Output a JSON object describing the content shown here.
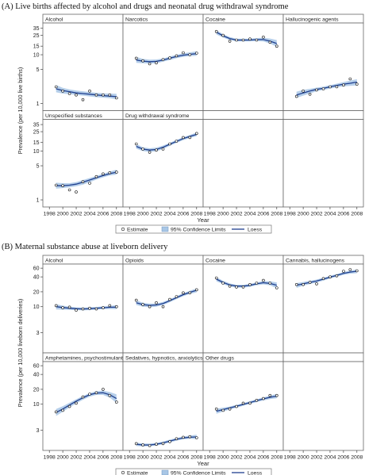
{
  "chart_data": [
    {
      "id": "A",
      "type": "scatter",
      "title": "(A) Live births affected by alcohol and drugs and neonatal drug withdrawal syndrome",
      "ylabel": "Prevalence (per 10,000 live births)",
      "xlabel": "Year",
      "yscale": "log",
      "ylim": [
        0.8,
        40
      ],
      "yticks": [
        1,
        5,
        10,
        15,
        25,
        35
      ],
      "xlim": [
        1997.5,
        2008.5
      ],
      "xticks": [
        1998,
        2000,
        2002,
        2004,
        2006,
        2008
      ],
      "legend": {
        "position": "bottom",
        "items": [
          "Estimate",
          "95% Confidence Limits",
          "Loess"
        ]
      },
      "panels": [
        {
          "title": "Alcohol",
          "x": [
            1999,
            2000,
            2001,
            2002,
            2003,
            2004,
            2005,
            2006,
            2007,
            2008
          ],
          "estimate": [
            2.2,
            1.8,
            1.6,
            1.5,
            1.2,
            1.8,
            1.5,
            1.5,
            1.5,
            1.3
          ],
          "loess": [
            2.0,
            1.85,
            1.75,
            1.65,
            1.6,
            1.55,
            1.5,
            1.45,
            1.42,
            1.38
          ],
          "ci_low": [
            1.7,
            1.6,
            1.55,
            1.5,
            1.45,
            1.4,
            1.35,
            1.32,
            1.28,
            1.22
          ],
          "ci_high": [
            2.4,
            2.1,
            1.95,
            1.85,
            1.78,
            1.72,
            1.66,
            1.62,
            1.6,
            1.58
          ]
        },
        {
          "title": "Narcotics",
          "x": [
            1999,
            2000,
            2001,
            2002,
            2003,
            2004,
            2005,
            2006,
            2007,
            2008
          ],
          "estimate": [
            8.5,
            7.5,
            6.5,
            6.8,
            8.0,
            8.6,
            9.5,
            11.0,
            10.0,
            10.8
          ],
          "loess": [
            7.8,
            7.4,
            7.2,
            7.3,
            7.8,
            8.5,
            9.2,
            9.8,
            10.2,
            10.5
          ],
          "ci_low": [
            6.8,
            6.7,
            6.6,
            6.7,
            7.2,
            7.8,
            8.5,
            9.0,
            9.4,
            9.5
          ],
          "ci_high": [
            9.0,
            8.2,
            7.9,
            8.0,
            8.4,
            9.2,
            10.0,
            10.7,
            11.2,
            11.7
          ]
        },
        {
          "title": "Cocaine",
          "x": [
            1999,
            2000,
            2001,
            2002,
            2003,
            2004,
            2005,
            2006,
            2007,
            2008
          ],
          "estimate": [
            30,
            25,
            19,
            20,
            20,
            21,
            20,
            23,
            18,
            15
          ],
          "loess": [
            29,
            24.5,
            21.5,
            20,
            20,
            20,
            20.5,
            20.5,
            19,
            17
          ],
          "ci_low": [
            26,
            22.5,
            20,
            18.8,
            18.8,
            18.8,
            19,
            18.8,
            17,
            14.5
          ],
          "ci_high": [
            32,
            26.5,
            23,
            21.3,
            21.3,
            21.3,
            22,
            22.3,
            21.5,
            20
          ]
        },
        {
          "title": "Hallucinogenic agents",
          "x": [
            1999,
            2000,
            2001,
            2002,
            2003,
            2004,
            2005,
            2006,
            2007,
            2008
          ],
          "estimate": [
            1.4,
            1.8,
            1.55,
            1.9,
            2.0,
            2.2,
            2.2,
            2.4,
            3.2,
            2.5
          ],
          "loess": [
            1.5,
            1.65,
            1.8,
            1.95,
            2.05,
            2.2,
            2.35,
            2.5,
            2.6,
            2.75
          ],
          "ci_low": [
            1.3,
            1.45,
            1.62,
            1.78,
            1.9,
            2.02,
            2.15,
            2.25,
            2.3,
            2.35
          ],
          "ci_high": [
            1.75,
            1.9,
            2.0,
            2.12,
            2.22,
            2.38,
            2.55,
            2.75,
            2.95,
            3.15
          ]
        },
        {
          "title": "Unspecified substances",
          "x": [
            1999,
            2000,
            2001,
            2002,
            2003,
            2004,
            2005,
            2006,
            2007,
            2008
          ],
          "estimate": [
            2.0,
            1.95,
            1.6,
            1.45,
            2.35,
            2.2,
            3.0,
            3.4,
            3.6,
            3.7
          ],
          "loess": [
            1.95,
            1.95,
            2.0,
            2.1,
            2.3,
            2.55,
            2.85,
            3.15,
            3.45,
            3.7
          ],
          "ci_low": [
            1.7,
            1.75,
            1.8,
            1.9,
            2.05,
            2.3,
            2.6,
            2.9,
            3.15,
            3.3
          ],
          "ci_high": [
            2.25,
            2.2,
            2.2,
            2.32,
            2.55,
            2.8,
            3.1,
            3.42,
            3.8,
            4.15
          ]
        },
        {
          "title": "Drug withdrawal syndrome",
          "x": [
            1999,
            2000,
            2001,
            2002,
            2003,
            2004,
            2005,
            2006,
            2007,
            2008
          ],
          "estimate": [
            14,
            11,
            9.5,
            10.5,
            11,
            14,
            16,
            19,
            19,
            23
          ],
          "loess": [
            12.5,
            11,
            10.5,
            10.8,
            12,
            13.8,
            15.8,
            18,
            20,
            22
          ],
          "ci_low": [
            11.2,
            10,
            9.6,
            9.9,
            11,
            12.8,
            14.7,
            16.8,
            18.6,
            20.2
          ],
          "ci_high": [
            14,
            12,
            11.4,
            11.8,
            13,
            14.8,
            17,
            19.3,
            21.5,
            24
          ]
        }
      ]
    },
    {
      "id": "B",
      "type": "scatter",
      "title": "(B) Maternal substance abuse at liveborn delivery",
      "ylabel": "Prevalence (per 10,000 liveborn deliveries)",
      "xlabel": "Year",
      "yscale": "log",
      "ylim": [
        1.3,
        65
      ],
      "yticks": [
        3,
        10,
        20,
        40,
        60
      ],
      "xlim": [
        1997.5,
        2008.5
      ],
      "xticks": [
        1998,
        2000,
        2002,
        2004,
        2006,
        2008
      ],
      "legend": {
        "position": "bottom",
        "items": [
          "Estimate",
          "95% Confidence Limits",
          "Loess"
        ]
      },
      "panels": [
        {
          "title": "Alcohol",
          "x": [
            1999,
            2000,
            2001,
            2002,
            2003,
            2004,
            2005,
            2006,
            2007,
            2008
          ],
          "estimate": [
            10.5,
            9.5,
            9.8,
            8.5,
            9.0,
            9.3,
            9.0,
            9.5,
            10.5,
            10.0
          ],
          "loess": [
            10,
            9.6,
            9.3,
            9.1,
            9.0,
            9.1,
            9.3,
            9.5,
            9.7,
            9.8
          ],
          "ci_low": [
            8.8,
            8.7,
            8.6,
            8.5,
            8.4,
            8.5,
            8.7,
            8.9,
            9.0,
            8.9
          ],
          "ci_high": [
            11.2,
            10.5,
            10.0,
            9.7,
            9.6,
            9.7,
            9.9,
            10.1,
            10.4,
            10.7
          ]
        },
        {
          "title": "Opioids",
          "x": [
            1999,
            2000,
            2001,
            2002,
            2003,
            2004,
            2005,
            2006,
            2007,
            2008
          ],
          "estimate": [
            13.5,
            11,
            10,
            12,
            10,
            14,
            16,
            19,
            19,
            22
          ],
          "loess": [
            12,
            11,
            10.6,
            10.8,
            11.6,
            13.2,
            15.2,
            17.5,
            19.5,
            21.5
          ],
          "ci_low": [
            10.8,
            10,
            9.7,
            10,
            10.8,
            12.3,
            14.2,
            16.3,
            18,
            19.5
          ],
          "ci_high": [
            13.4,
            12,
            11.5,
            11.6,
            12.5,
            14.1,
            16.3,
            18.8,
            21,
            23.5
          ]
        },
        {
          "title": "Cocaine",
          "x": [
            1999,
            2000,
            2001,
            2002,
            2003,
            2004,
            2005,
            2006,
            2007,
            2008
          ],
          "estimate": [
            38,
            30,
            26,
            25,
            25,
            28,
            30,
            34,
            30,
            24
          ],
          "loess": [
            36,
            31,
            27.5,
            26,
            26,
            27,
            29,
            30.5,
            29.5,
            27
          ],
          "ci_low": [
            32.5,
            28.5,
            25.5,
            24.3,
            24.3,
            25.2,
            27,
            28.2,
            27,
            23.5
          ],
          "ci_high": [
            39.5,
            33.5,
            29.5,
            27.7,
            27.7,
            28.8,
            31,
            32.8,
            32.5,
            31
          ]
        },
        {
          "title": "Cannabis, hallucinogens",
          "x": [
            1999,
            2000,
            2001,
            2002,
            2003,
            2004,
            2005,
            2006,
            2007,
            2008
          ],
          "estimate": [
            28,
            28,
            31,
            29,
            37,
            40,
            42,
            52,
            56,
            53
          ],
          "loess": [
            27,
            29,
            31,
            33,
            36,
            39.5,
            43,
            47,
            50,
            52
          ],
          "ci_low": [
            24,
            26.5,
            28.6,
            30.7,
            33.6,
            37,
            40.3,
            44,
            46.5,
            47.5
          ],
          "ci_high": [
            30,
            31.5,
            33.4,
            35.3,
            38.4,
            42,
            45.7,
            50,
            53.5,
            56.5
          ]
        },
        {
          "title": "Amphetamines, psychostimulants",
          "x": [
            1999,
            2000,
            2001,
            2002,
            2003,
            2004,
            2005,
            2006,
            2007,
            2008
          ],
          "estimate": [
            7.0,
            7.5,
            9.0,
            10.5,
            14,
            16,
            17,
            20,
            15,
            11
          ],
          "loess": [
            6.8,
            8.0,
            9.6,
            11.5,
            13.5,
            15.5,
            16.8,
            17,
            15.5,
            13
          ],
          "ci_low": [
            5.8,
            7.0,
            8.6,
            10.4,
            12.3,
            14.2,
            15.4,
            15.4,
            13.6,
            10.6
          ],
          "ci_high": [
            8.0,
            9.1,
            10.7,
            12.6,
            14.7,
            16.8,
            18.3,
            18.8,
            17.6,
            15.8
          ]
        },
        {
          "title": "Sedatives, hypnotics, anxiolytics",
          "x": [
            1999,
            2000,
            2001,
            2002,
            2003,
            2004,
            2005,
            2006,
            2007,
            2008
          ],
          "estimate": [
            1.6,
            1.5,
            1.45,
            1.55,
            1.6,
            1.75,
            2.0,
            2.15,
            2.2,
            2.1
          ],
          "loess": [
            1.55,
            1.5,
            1.5,
            1.55,
            1.65,
            1.8,
            1.95,
            2.08,
            2.15,
            2.18
          ],
          "ci_low": [
            1.43,
            1.4,
            1.41,
            1.46,
            1.55,
            1.69,
            1.83,
            1.95,
            2.0,
            1.97
          ],
          "ci_high": [
            1.68,
            1.61,
            1.6,
            1.65,
            1.76,
            1.92,
            2.08,
            2.22,
            2.32,
            2.42
          ]
        },
        {
          "title": "Other drugs",
          "x": [
            1999,
            2000,
            2001,
            2002,
            2003,
            2004,
            2005,
            2006,
            2007,
            2008
          ],
          "estimate": [
            8.0,
            7.5,
            8.0,
            9.0,
            10.5,
            10.5,
            12,
            13,
            15,
            15
          ],
          "loess": [
            7.2,
            7.8,
            8.4,
            9.1,
            9.9,
            10.8,
            11.8,
            12.8,
            13.8,
            14.6
          ],
          "ci_low": [
            6.4,
            7.1,
            7.8,
            8.5,
            9.3,
            10.1,
            11.0,
            11.9,
            12.7,
            13.2
          ],
          "ci_high": [
            8.1,
            8.5,
            9.0,
            9.7,
            10.5,
            11.5,
            12.6,
            13.7,
            15.0,
            16.1
          ]
        }
      ]
    }
  ]
}
